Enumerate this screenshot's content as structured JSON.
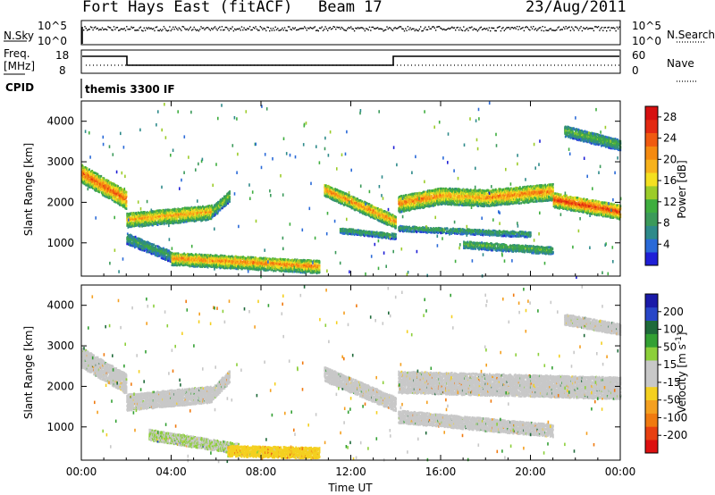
{
  "header": {
    "station": "Fort Hays East (fitACF)",
    "beam": "Beam 17",
    "date": "23/Aug/2011"
  },
  "status": {
    "nsky_label": "N.Sky",
    "nsky_ticks": [
      "10^5",
      "10^0"
    ],
    "nsearch_label": "N.Search",
    "nsearch_ticks": [
      "10^5",
      "10^0"
    ],
    "freq_label": "Freq.",
    "freq_unit": "[MHz]",
    "freq_ticks": [
      "18",
      "8"
    ],
    "nave_label": "Nave",
    "nave_ticks": [
      "60",
      "0"
    ],
    "cpid_label": "CPID",
    "cpid_text": "themis 3300 IF"
  },
  "colors": {
    "power_scale": [
      "#1f1fd6",
      "#2a6ad8",
      "#2e8a8a",
      "#3b9a5a",
      "#3fae3f",
      "#9ccc2a",
      "#f4e020",
      "#f7b21c",
      "#f58a10",
      "#f05a10",
      "#e32a12",
      "#d61010"
    ],
    "velocity_scale": [
      "#1a1aa8",
      "#2846c8",
      "#1f6a3a",
      "#33a033",
      "#8ccf3a",
      "#c8c8c8",
      "#c8c8c8",
      "#f4d020",
      "#f4a020",
      "#f07a10",
      "#e84010",
      "#dd1010"
    ]
  },
  "chart_data": [
    {
      "type": "heatmap",
      "title": "Power",
      "xlabel": "",
      "ylabel": "Slant Range [km]",
      "x_ticks": [
        "00:00",
        "04:00",
        "08:00",
        "12:00",
        "16:00",
        "20:00",
        "00:00"
      ],
      "xlim_hours": [
        0,
        24
      ],
      "y_ticks": [
        1000,
        2000,
        3000,
        4000
      ],
      "ylim": [
        180,
        4500
      ],
      "colorbar": {
        "label": "Power [dB]",
        "ticks": [
          4,
          8,
          12,
          16,
          20,
          24,
          28
        ],
        "range": [
          0,
          30
        ]
      },
      "echo_bands": [
        {
          "t0": 0.0,
          "r0": 2750,
          "t1": 2.0,
          "r1": 2100,
          "width": 450,
          "value": 24
        },
        {
          "t0": 2.0,
          "r0": 1600,
          "t1": 5.8,
          "r1": 1800,
          "width": 350,
          "value": 20
        },
        {
          "t0": 5.8,
          "r0": 1800,
          "t1": 6.6,
          "r1": 2200,
          "width": 250,
          "value": 14
        },
        {
          "t0": 2.0,
          "r0": 1150,
          "t1": 4.0,
          "r1": 700,
          "width": 250,
          "value": 10
        },
        {
          "t0": 4.0,
          "r0": 650,
          "t1": 10.6,
          "r1": 450,
          "width": 300,
          "value": 22
        },
        {
          "t0": 10.8,
          "r0": 2350,
          "t1": 14.0,
          "r1": 1550,
          "width": 300,
          "value": 22
        },
        {
          "t0": 11.5,
          "r0": 1350,
          "t1": 14.0,
          "r1": 1200,
          "width": 150,
          "value": 10
        },
        {
          "t0": 14.1,
          "r0": 2000,
          "t1": 16.0,
          "r1": 2200,
          "width": 400,
          "value": 22
        },
        {
          "t0": 16.0,
          "r0": 2200,
          "t1": 18.0,
          "r1": 2150,
          "width": 400,
          "value": 20
        },
        {
          "t0": 18.0,
          "r0": 2150,
          "t1": 21.0,
          "r1": 2300,
          "width": 400,
          "value": 22
        },
        {
          "t0": 21.0,
          "r0": 2100,
          "t1": 24.0,
          "r1": 1800,
          "width": 350,
          "value": 26
        },
        {
          "t0": 14.1,
          "r0": 1400,
          "t1": 20.0,
          "r1": 1250,
          "width": 150,
          "value": 10
        },
        {
          "t0": 17.0,
          "r0": 1000,
          "t1": 21.0,
          "r1": 850,
          "width": 200,
          "value": 12
        },
        {
          "t0": 21.5,
          "r0": 3800,
          "t1": 24.0,
          "r1": 3450,
          "width": 250,
          "value": 12
        }
      ]
    },
    {
      "type": "heatmap",
      "title": "Velocity",
      "xlabel": "Time UT",
      "ylabel": "Slant Range [km]",
      "x_ticks": [
        "00:00",
        "04:00",
        "08:00",
        "12:00",
        "16:00",
        "20:00",
        "00:00"
      ],
      "xlim_hours": [
        0,
        24
      ],
      "y_ticks": [
        1000,
        2000,
        3000,
        4000
      ],
      "ylim": [
        180,
        4500
      ],
      "colorbar": {
        "label": "Velocity [m s^-1]",
        "ticks": [
          200,
          100,
          50,
          15,
          -15,
          -50,
          -100,
          -200
        ],
        "range": [
          -250,
          250
        ]
      },
      "echo_bands": [
        {
          "t0": 0.0,
          "r0": 2750,
          "t1": 2.0,
          "r1": 2100,
          "width": 500,
          "value": 0
        },
        {
          "t0": 2.0,
          "r0": 1650,
          "t1": 5.8,
          "r1": 1850,
          "width": 400,
          "value": 0
        },
        {
          "t0": 5.8,
          "r0": 1850,
          "t1": 6.6,
          "r1": 2300,
          "width": 300,
          "value": 0
        },
        {
          "t0": 3.0,
          "r0": 850,
          "t1": 7.0,
          "r1": 500,
          "width": 250,
          "value": 40
        },
        {
          "t0": 6.5,
          "r0": 450,
          "t1": 10.6,
          "r1": 400,
          "width": 250,
          "value": -70
        },
        {
          "t0": 10.8,
          "r0": 2350,
          "t1": 14.0,
          "r1": 1600,
          "width": 350,
          "value": 0
        },
        {
          "t0": 14.1,
          "r0": 2150,
          "t1": 24.0,
          "r1": 2000,
          "width": 550,
          "value": 0
        },
        {
          "t0": 14.1,
          "r0": 1300,
          "t1": 21.0,
          "r1": 950,
          "width": 300,
          "value": 0
        },
        {
          "t0": 21.5,
          "r0": 3700,
          "t1": 24.0,
          "r1": 3450,
          "width": 250,
          "value": 0
        }
      ]
    }
  ]
}
